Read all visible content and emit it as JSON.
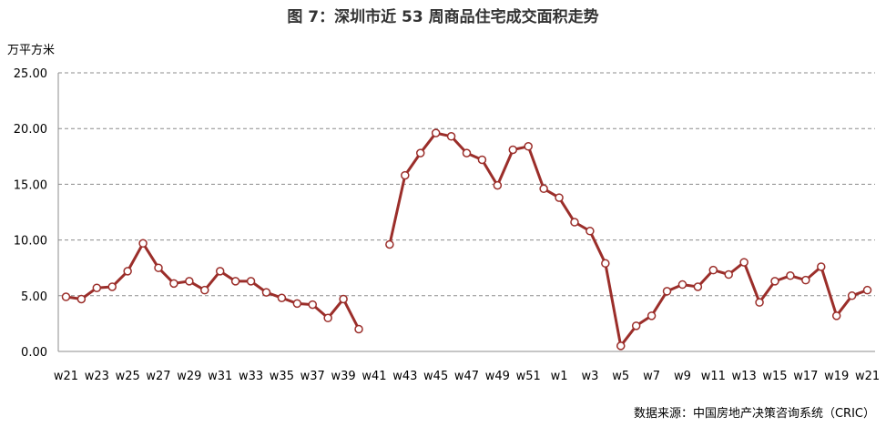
{
  "chart_data": {
    "type": "line",
    "title": "图 7：深圳市近 53 周商品住宅成交面积走势",
    "ylabel": "万平方米",
    "source": "数据来源：中国房地产决策咨询系统（CRIC）",
    "ylim": [
      0,
      25
    ],
    "yticks": [
      "0.00",
      "5.00",
      "10.00",
      "15.00",
      "20.00",
      "25.00"
    ],
    "grid": true,
    "line_color": "#9B2E2A",
    "marker_fill": "#ffffff",
    "categories": [
      "w21",
      "w22",
      "w23",
      "w24",
      "w25",
      "w26",
      "w27",
      "w28",
      "w29",
      "w30",
      "w31",
      "w32",
      "w33",
      "w34",
      "w35",
      "w36",
      "w37",
      "w38",
      "w39",
      "w40",
      "w41",
      "w42",
      "w43",
      "w44",
      "w45",
      "w46",
      "w47",
      "w48",
      "w49",
      "w50",
      "w51",
      "w52",
      "w1",
      "w2",
      "w3",
      "w4",
      "w5",
      "w6",
      "w7",
      "w8",
      "w9",
      "w10",
      "w11",
      "w12",
      "w13",
      "w14",
      "w15",
      "w16",
      "w17",
      "w18",
      "w19",
      "w20",
      "w21"
    ],
    "xtick_labels": [
      "w21",
      "w23",
      "w25",
      "w27",
      "w29",
      "w31",
      "w33",
      "w35",
      "w37",
      "w39",
      "w41",
      "w43",
      "w45",
      "w47",
      "w49",
      "w51",
      "w1",
      "w3",
      "w5",
      "w7",
      "w9",
      "w11",
      "w13",
      "w15",
      "w17",
      "w19",
      "w21"
    ],
    "values": [
      4.9,
      4.7,
      5.7,
      5.8,
      7.2,
      9.7,
      7.5,
      6.1,
      6.3,
      5.5,
      7.2,
      6.3,
      6.3,
      5.3,
      4.8,
      4.3,
      4.2,
      3.0,
      4.7,
      2.0,
      null,
      9.6,
      15.8,
      17.8,
      19.6,
      19.3,
      17.8,
      17.2,
      14.9,
      18.1,
      18.4,
      14.6,
      13.8,
      11.6,
      10.8,
      7.9,
      0.5,
      2.3,
      3.2,
      5.4,
      6.0,
      5.8,
      7.3,
      6.9,
      8.0,
      4.4,
      6.3,
      6.8,
      6.4,
      7.6,
      3.2,
      5.0,
      5.5
    ]
  }
}
